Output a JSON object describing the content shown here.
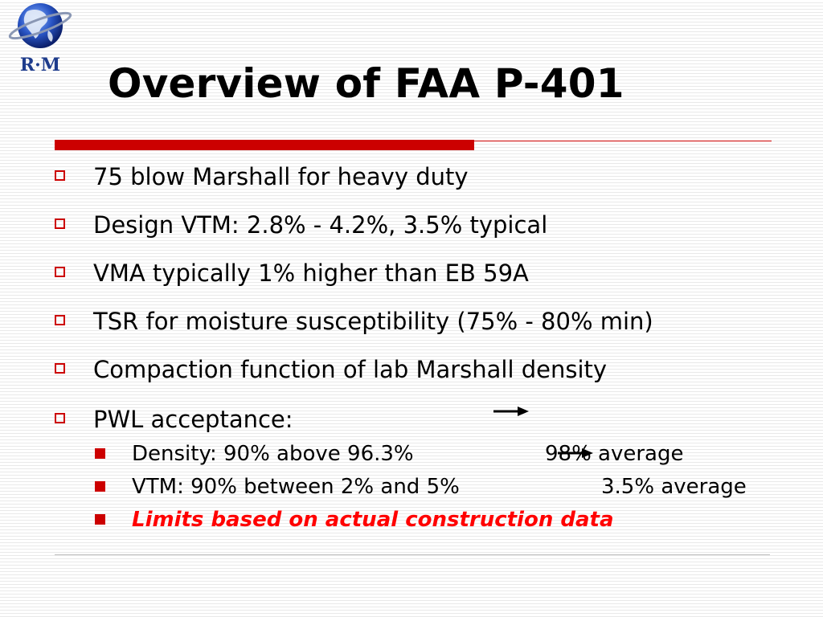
{
  "logo": {
    "text": "R·M",
    "icon": "globe-icon"
  },
  "slide": {
    "title": "Overview of FAA P-401"
  },
  "bullets": [
    "75 blow Marshall for heavy duty",
    "Design VTM: 2.8% - 4.2%, 3.5% typical",
    "VMA typically 1% higher than EB 59A",
    "TSR for moisture susceptibility (75% - 80% min)",
    "Compaction function of lab Marshall density",
    "PWL acceptance:"
  ],
  "sub_bullets": [
    {
      "label": "Density: 90% above 96.3%",
      "value": "98% average"
    },
    {
      "label": "VTM: 90% between 2% and 5%",
      "value": "3.5% average"
    },
    {
      "label": "Limits based on actual construction data",
      "value": ""
    }
  ],
  "colors": {
    "accent": "#cc0000",
    "emphasis": "#ff0000",
    "text": "#000000",
    "logo_blue": "#1e3c8c"
  }
}
